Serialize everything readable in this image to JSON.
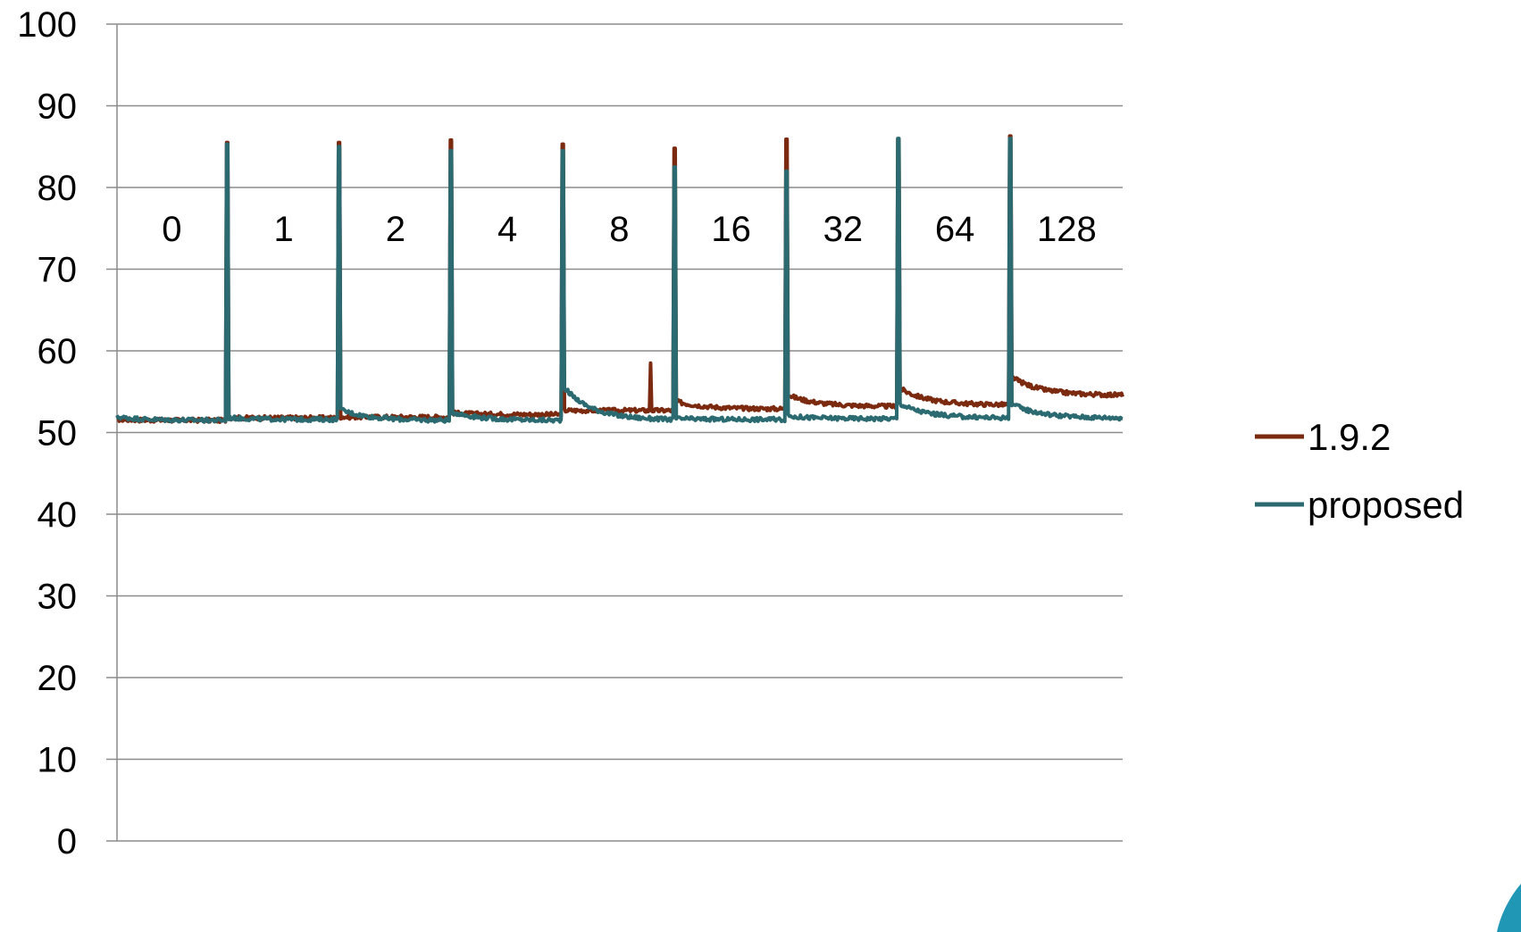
{
  "chart_data": {
    "type": "line",
    "title": "",
    "xlabel": "",
    "ylabel": "",
    "ylim": [
      0,
      100
    ],
    "yticks": [
      0,
      10,
      20,
      30,
      40,
      50,
      60,
      70,
      80,
      90,
      100
    ],
    "grid": true,
    "legend_position": "right",
    "x_points_per_segment": 100,
    "segment_labels": [
      "0",
      "1",
      "2",
      "4",
      "8",
      "16",
      "32",
      "64",
      "128"
    ],
    "series": [
      {
        "name": "1.9.2",
        "color": "#7b2a10",
        "segment_start": [
          51.6,
          51.8,
          51.9,
          52.4,
          52.7,
          53.8,
          54.6,
          55.4,
          56.8
        ],
        "segment_end": [
          51.5,
          51.8,
          51.9,
          52.2,
          52.7,
          52.9,
          53.2,
          53.4,
          54.6
        ],
        "spike_peaks": [
          85.5,
          85.5,
          85.8,
          85.3,
          84.8,
          85.9,
          85.9,
          86.3
        ],
        "extra_spike": {
          "segment": 4,
          "position": 0.78,
          "value": 58.5
        }
      },
      {
        "name": "proposed",
        "color": "#2a6a70",
        "segment_start": [
          51.9,
          51.8,
          52.8,
          52.5,
          55.5,
          51.7,
          52.0,
          53.5,
          53.5
        ],
        "segment_end": [
          51.5,
          51.6,
          51.5,
          51.5,
          51.6,
          51.6,
          51.7,
          51.8,
          51.8
        ],
        "spike_peaks": [
          85.3,
          85.0,
          84.5,
          84.5,
          82.5,
          82.0,
          86.0,
          86.0
        ],
        "extra_spike": null
      }
    ]
  }
}
